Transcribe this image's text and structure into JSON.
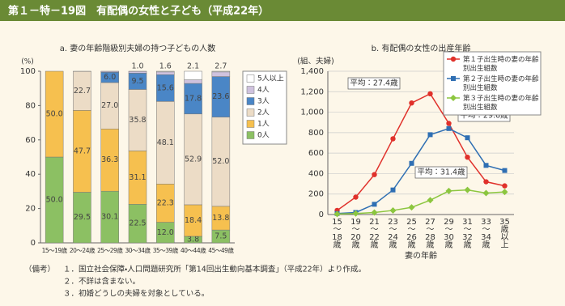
{
  "header": {
    "title": "第１－特－19図　有配偶の女性と子ども（平成22年）"
  },
  "chart_data": [
    {
      "type": "bar",
      "stacked": true,
      "title": "a. 妻の年齢階級別夫婦の持つ子どもの人数",
      "y_label": "(%)",
      "categories": [
        "15～19歳",
        "20～24歳",
        "25～29歳",
        "30～34歳",
        "35～39歳",
        "40～44歳",
        "45～49歳"
      ],
      "ylim": [
        0,
        100
      ],
      "yticks": [
        0,
        20,
        40,
        60,
        80,
        100
      ],
      "series": [
        {
          "name": "0人",
          "color": "#8cc063",
          "values": [
            50,
            29.5,
            30.1,
            22.5,
            12,
            3.8,
            7.5
          ],
          "value_labels": [
            "50.0",
            "29.5",
            "30.1",
            "22.5",
            "12.0",
            "3.8",
            "7.5"
          ]
        },
        {
          "name": "1人",
          "color": "#f6c04f",
          "values": [
            50,
            47.7,
            36.3,
            31.1,
            22.3,
            18.4,
            13.8
          ],
          "value_labels": [
            "50.0",
            "47.7",
            "36.3",
            "31.1",
            "22.3",
            "18.4",
            "13.8"
          ]
        },
        {
          "name": "2人",
          "color": "#ecdcc6",
          "values": [
            0,
            22.7,
            27,
            35.8,
            48.1,
            52.9,
            52
          ],
          "value_labels": [
            null,
            "22.7",
            "27.0",
            "35.8",
            "48.1",
            "52.9",
            "52.0"
          ]
        },
        {
          "name": "3人",
          "color": "#4a86c6",
          "values": [
            0,
            0,
            6,
            9.5,
            15.6,
            17.8,
            23.6
          ],
          "value_labels": [
            null,
            null,
            "6.0",
            "9.5",
            "15.6",
            "17.8",
            "23.6"
          ]
        },
        {
          "name": "4人",
          "color": "#cfc2de",
          "values": [
            0,
            0,
            0.5,
            1,
            1.6,
            2.1,
            2.7
          ],
          "value_labels": [
            null,
            null,
            null,
            "1.0",
            "1.6",
            "2.1",
            "2.7"
          ]
        },
        {
          "name": "5人以上",
          "color": "#ffffff",
          "values": [
            0,
            0.1,
            0.1,
            0.1,
            0.4,
            5,
            0.4
          ],
          "value_labels": [
            null,
            null,
            null,
            null,
            null,
            null,
            null
          ]
        }
      ]
    },
    {
      "type": "line",
      "title": "b. 有配偶の女性の出産年齢",
      "y_label": "(組、夫婦)",
      "x_label": "妻の年齢",
      "categories": [
        "15～18歳",
        "19～20歳",
        "21～22歳",
        "23～24歳",
        "25～26歳",
        "27～28歳",
        "29～30歳",
        "31～32歳",
        "33～34歳",
        "35歳以上"
      ],
      "ylim": [
        0,
        1400
      ],
      "yticks": [
        0,
        200,
        400,
        600,
        800,
        {
          "value": 1000,
          "label": "1,000"
        },
        {
          "value": 1200,
          "label": "1,200"
        },
        {
          "value": 1400,
          "label": "1,400"
        }
      ],
      "grid": true,
      "series": [
        {
          "name": "第１子出生時の妻の年齢別出生組数",
          "color": "#e0312b",
          "marker": "circle",
          "values": [
            40,
            170,
            390,
            740,
            1090,
            1180,
            890,
            560,
            320,
            280
          ]
        },
        {
          "name": "第２子出生時の妻の年齢別出生組数",
          "color": "#2f6fb3",
          "marker": "square",
          "values": [
            10,
            20,
            100,
            240,
            500,
            780,
            840,
            750,
            480,
            430
          ]
        },
        {
          "name": "第３子出生時の妻の年齢別出生組数",
          "color": "#8cc63f",
          "marker": "diamond",
          "values": [
            5,
            10,
            20,
            40,
            70,
            140,
            230,
            240,
            210,
            220
          ]
        }
      ],
      "annotations": [
        "平均：27.4歳",
        "平均：29.6歳",
        "平均：31.4歳"
      ]
    }
  ],
  "notes": {
    "label": "（備考）",
    "items": [
      "１．国立社会保障・人口問題研究所「第14回出生動向基本調査」（平成22年）より作成。",
      "２．不詳は含まない。",
      "３．初婚どうしの夫婦を対象としている。"
    ]
  }
}
